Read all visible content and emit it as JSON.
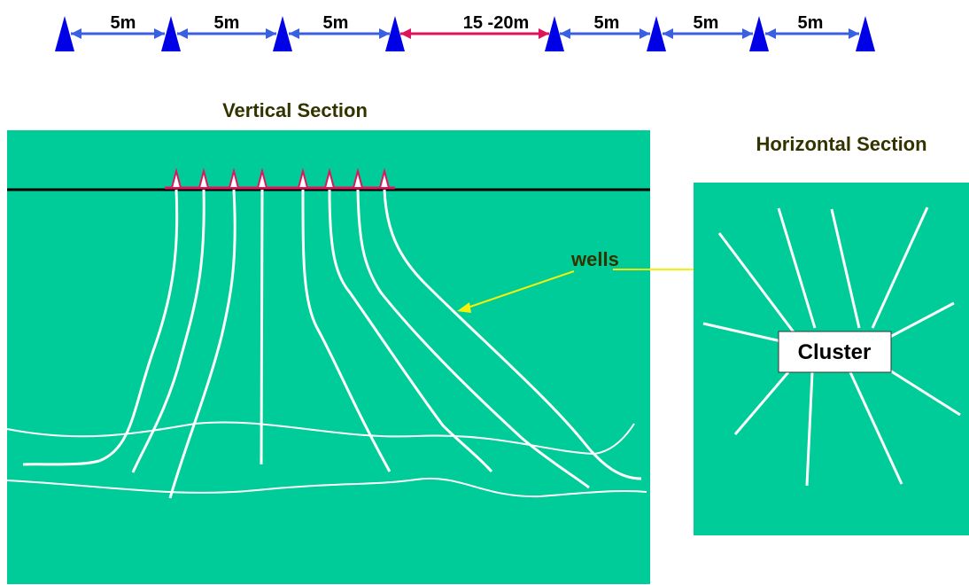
{
  "spacing_row": {
    "labels": [
      "5m",
      "5m",
      "5m",
      "15 -20m",
      "5m",
      "5m",
      "5m"
    ],
    "normal_arrow_color": "#3a5fe0",
    "long_arrow_color": "#e0145a",
    "marker_color": "#0000e6"
  },
  "vertical_section": {
    "title": "Vertical Section",
    "callout_label": "wells"
  },
  "horizontal_section": {
    "title": "Horizontal Section",
    "cluster_label": "Cluster"
  },
  "colors": {
    "ground": "#00cc99",
    "well_line": "#ffffff",
    "surface_line": "#000000",
    "rig_marker": "#e0145a",
    "callout_arrow": "#f2f20a",
    "title_text": "#333300"
  }
}
